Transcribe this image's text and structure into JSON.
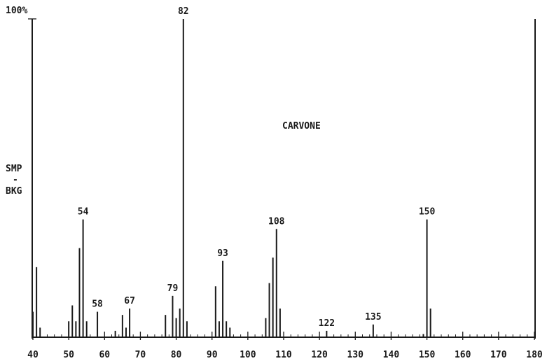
{
  "chart_data": {
    "type": "bar",
    "title": "CARVONE",
    "xlabel": "",
    "ylabel_lines": [
      "SMP",
      "-",
      "BKG"
    ],
    "y_max_label": "100%",
    "xlim": [
      40,
      180
    ],
    "ylim": [
      0,
      100
    ],
    "x_ticks": [
      40,
      50,
      60,
      70,
      80,
      90,
      100,
      110,
      120,
      130,
      140,
      150,
      160,
      170,
      180
    ],
    "x_tick_labels": [
      "40",
      "50",
      "60",
      "70",
      "80",
      "90",
      "100",
      "110",
      "120",
      "130",
      "140",
      "150",
      "160",
      "170",
      "180"
    ],
    "grid": false,
    "peaks": [
      {
        "mz": 40,
        "intensity": 8
      },
      {
        "mz": 41,
        "intensity": 22
      },
      {
        "mz": 42,
        "intensity": 3
      },
      {
        "mz": 50,
        "intensity": 5
      },
      {
        "mz": 51,
        "intensity": 10
      },
      {
        "mz": 52,
        "intensity": 5
      },
      {
        "mz": 53,
        "intensity": 28
      },
      {
        "mz": 54,
        "intensity": 37
      },
      {
        "mz": 55,
        "intensity": 5
      },
      {
        "mz": 58,
        "intensity": 8
      },
      {
        "mz": 63,
        "intensity": 2
      },
      {
        "mz": 65,
        "intensity": 7
      },
      {
        "mz": 66,
        "intensity": 3
      },
      {
        "mz": 67,
        "intensity": 9
      },
      {
        "mz": 77,
        "intensity": 7
      },
      {
        "mz": 79,
        "intensity": 13
      },
      {
        "mz": 80,
        "intensity": 6
      },
      {
        "mz": 81,
        "intensity": 9
      },
      {
        "mz": 82,
        "intensity": 100
      },
      {
        "mz": 83,
        "intensity": 5
      },
      {
        "mz": 91,
        "intensity": 16
      },
      {
        "mz": 92,
        "intensity": 5
      },
      {
        "mz": 93,
        "intensity": 24
      },
      {
        "mz": 94,
        "intensity": 5
      },
      {
        "mz": 95,
        "intensity": 3
      },
      {
        "mz": 105,
        "intensity": 6
      },
      {
        "mz": 106,
        "intensity": 17
      },
      {
        "mz": 107,
        "intensity": 25
      },
      {
        "mz": 108,
        "intensity": 34
      },
      {
        "mz": 109,
        "intensity": 9
      },
      {
        "mz": 122,
        "intensity": 2
      },
      {
        "mz": 135,
        "intensity": 4
      },
      {
        "mz": 149,
        "intensity": 1
      },
      {
        "mz": 150,
        "intensity": 37
      },
      {
        "mz": 151,
        "intensity": 9
      }
    ],
    "peak_labels": [
      {
        "mz": 54,
        "text": "54"
      },
      {
        "mz": 58,
        "text": "58"
      },
      {
        "mz": 67,
        "text": "67"
      },
      {
        "mz": 79,
        "text": "79"
      },
      {
        "mz": 82,
        "text": "82"
      },
      {
        "mz": 93,
        "text": "93"
      },
      {
        "mz": 108,
        "text": "108"
      },
      {
        "mz": 122,
        "text": "122"
      },
      {
        "mz": 135,
        "text": "135"
      },
      {
        "mz": 150,
        "text": "150"
      }
    ]
  }
}
